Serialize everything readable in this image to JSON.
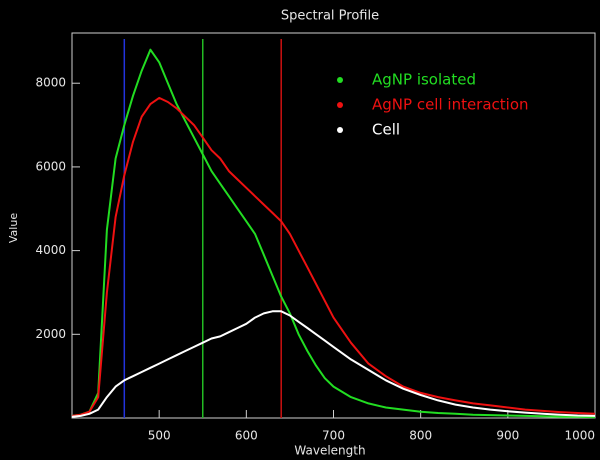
{
  "chart_data": {
    "type": "line",
    "title": "Spectral Profile",
    "x_label": "Wavelength",
    "y_label": "Value",
    "x": [
      400,
      410,
      420,
      430,
      440,
      450,
      460,
      470,
      480,
      490,
      500,
      510,
      520,
      530,
      540,
      550,
      560,
      570,
      580,
      590,
      600,
      610,
      620,
      630,
      640,
      650,
      660,
      670,
      680,
      690,
      700,
      720,
      740,
      760,
      780,
      800,
      820,
      840,
      860,
      880,
      900,
      920,
      940,
      960,
      980,
      1000
    ],
    "series": [
      {
        "name": "AgNP isolated",
        "color": "#22dd22",
        "values": [
          50,
          80,
          150,
          600,
          4500,
          6200,
          7000,
          7700,
          8300,
          8800,
          8500,
          8000,
          7500,
          7100,
          6700,
          6300,
          5900,
          5600,
          5300,
          5000,
          4700,
          4400,
          3900,
          3400,
          2900,
          2500,
          2000,
          1600,
          1250,
          950,
          750,
          500,
          350,
          250,
          200,
          150,
          120,
          100,
          80,
          70,
          60,
          50,
          40,
          30,
          30,
          20
        ]
      },
      {
        "name": "AgNP cell interaction",
        "color": "#ee1111",
        "values": [
          50,
          80,
          150,
          500,
          3000,
          4800,
          5800,
          6600,
          7200,
          7500,
          7650,
          7550,
          7400,
          7200,
          7000,
          6700,
          6400,
          6200,
          5900,
          5700,
          5500,
          5300,
          5100,
          4900,
          4700,
          4400,
          4000,
          3600,
          3200,
          2800,
          2400,
          1800,
          1300,
          1000,
          750,
          600,
          500,
          420,
          350,
          300,
          250,
          200,
          170,
          140,
          120,
          100
        ]
      },
      {
        "name": "Cell",
        "color": "#ffffff",
        "values": [
          30,
          50,
          100,
          200,
          500,
          750,
          900,
          1000,
          1100,
          1200,
          1300,
          1400,
          1500,
          1600,
          1700,
          1800,
          1900,
          1950,
          2050,
          2150,
          2250,
          2400,
          2500,
          2550,
          2550,
          2450,
          2300,
          2150,
          2000,
          1850,
          1700,
          1400,
          1150,
          900,
          700,
          550,
          420,
          320,
          250,
          200,
          160,
          130,
          100,
          80,
          60,
          50
        ]
      }
    ],
    "markers": [
      {
        "x": 460,
        "color": "#2233dd"
      },
      {
        "x": 550,
        "color": "#22bb22"
      },
      {
        "x": 640,
        "color": "#cc1111"
      }
    ],
    "xlim": [
      400,
      1000
    ],
    "ylim": [
      0,
      9200
    ],
    "xticks": [
      500,
      600,
      700,
      800,
      900,
      1000
    ],
    "yticks": [
      2000,
      4000,
      6000,
      8000
    ],
    "legend": "top-right"
  }
}
